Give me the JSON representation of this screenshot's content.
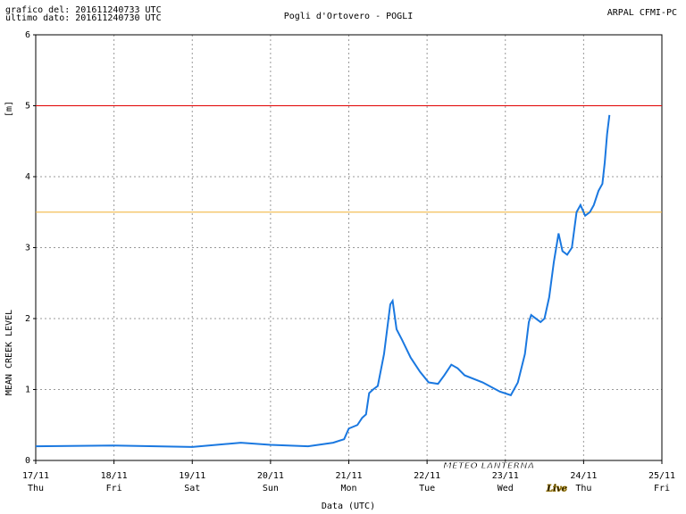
{
  "chart_data": {
    "type": "line",
    "header_left": [
      "grafico del: 201611240733 UTC",
      "ultimo dato: 201611240730 UTC"
    ],
    "title": "Pogli d'Ortovero - POGLI",
    "header_right": "ARPAL CFMI-PC",
    "y_label": "MEAN CREEK LEVEL",
    "y_unit": "[m]",
    "x_label": "Data (UTC)",
    "watermark": "METEO LANTERNA",
    "watermark_script": "Live",
    "xlim": [
      0,
      8
    ],
    "xticks": [
      {
        "value": 0,
        "label": "17/11"
      },
      {
        "value": 1,
        "label": "18/11"
      },
      {
        "value": 2,
        "label": "19/11"
      },
      {
        "value": 3,
        "label": "20/11"
      },
      {
        "value": 4,
        "label": "21/11"
      },
      {
        "value": 5,
        "label": "22/11"
      },
      {
        "value": 6,
        "label": "23/11"
      },
      {
        "value": 7,
        "label": "24/11"
      },
      {
        "value": 8,
        "label": "25/11"
      }
    ],
    "xtick_days": [
      "Thu",
      "Fri",
      "Sat",
      "Sun",
      "Mon",
      "Tue",
      "Wed",
      "Thu",
      "Fri"
    ],
    "ylim": [
      0,
      6
    ],
    "yticks": [
      0,
      1,
      2,
      3,
      4,
      5,
      6
    ],
    "grid": true,
    "thresholds": [
      {
        "value": 5,
        "color": "#e00000"
      },
      {
        "value": 3.5,
        "color": "#f0b030"
      }
    ],
    "series": [
      {
        "color": "#1a78e0",
        "x": [
          0,
          0.99,
          2.0,
          2.62,
          3.0,
          3.48,
          3.8,
          3.94,
          4.0,
          4.11,
          4.17,
          4.22,
          4.26,
          4.31,
          4.37,
          4.45,
          4.53,
          4.56,
          4.61,
          4.68,
          4.79,
          4.91,
          5.02,
          5.14,
          5.22,
          5.31,
          5.39,
          5.48,
          5.71,
          5.93,
          6.07,
          6.16,
          6.25,
          6.3,
          6.33,
          6.45,
          6.5,
          6.56,
          6.62,
          6.68,
          6.73,
          6.79,
          6.85,
          6.91,
          6.96,
          7.02,
          7.08,
          7.13,
          7.19,
          7.24,
          7.27,
          7.3,
          7.33
        ],
        "values": [
          0.2,
          0.21,
          0.19,
          0.25,
          0.22,
          0.2,
          0.25,
          0.3,
          0.45,
          0.5,
          0.6,
          0.65,
          0.95,
          1.0,
          1.05,
          1.5,
          2.2,
          2.25,
          1.85,
          1.7,
          1.45,
          1.25,
          1.1,
          1.08,
          1.2,
          1.35,
          1.3,
          1.2,
          1.1,
          0.97,
          0.92,
          1.1,
          1.5,
          1.95,
          2.05,
          1.95,
          2.0,
          2.3,
          2.8,
          3.2,
          2.95,
          2.9,
          3.0,
          3.5,
          3.6,
          3.45,
          3.5,
          3.6,
          3.8,
          3.9,
          4.2,
          4.6,
          4.87
        ]
      }
    ]
  }
}
